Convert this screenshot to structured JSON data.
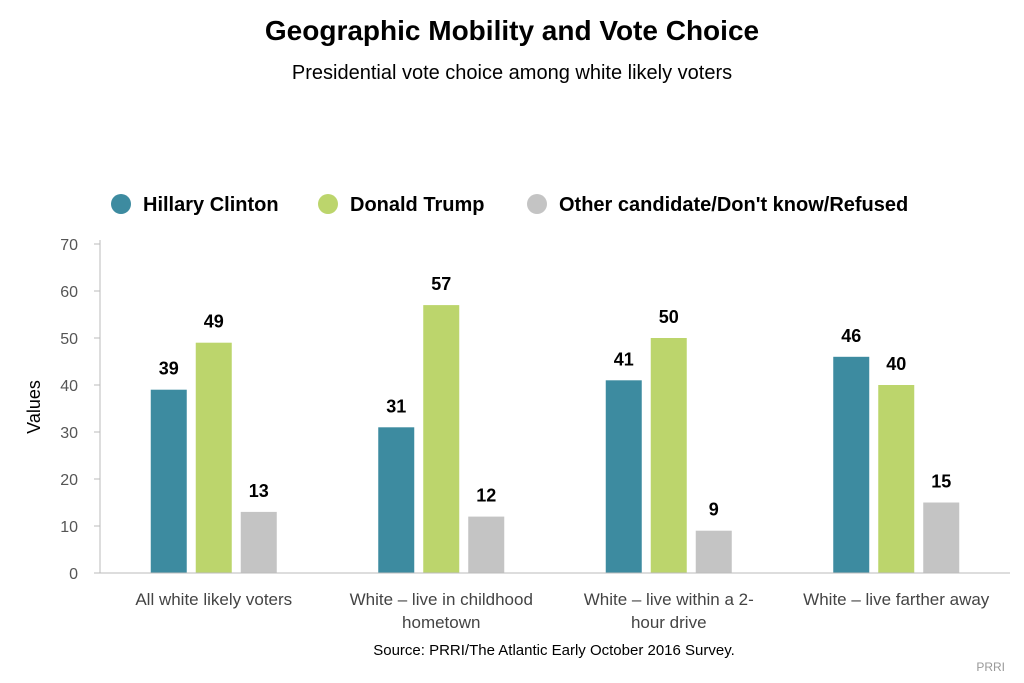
{
  "chart_data": {
    "type": "bar",
    "title": "Geographic Mobility and Vote Choice",
    "subtitle": "Presidential vote choice among white likely voters",
    "xlabel": "",
    "ylabel": "Values",
    "ylim": [
      0,
      70
    ],
    "yticks": [
      0,
      10,
      20,
      30,
      40,
      50,
      60,
      70
    ],
    "grid": false,
    "legend_position": "top",
    "categories": [
      [
        "All white likely voters"
      ],
      [
        "White – live in childhood",
        "hometown"
      ],
      [
        "White – live within a 2-",
        "hour drive"
      ],
      [
        "White – live farther away"
      ]
    ],
    "series": [
      {
        "name": "Hillary Clinton",
        "color": "#3d8ba0",
        "values": [
          39,
          31,
          41,
          46
        ]
      },
      {
        "name": "Donald Trump",
        "color": "#bcd56c",
        "values": [
          49,
          57,
          50,
          40
        ]
      },
      {
        "name": "Other candidate/Don't know/Refused",
        "color": "#c4c4c4",
        "values": [
          13,
          12,
          9,
          15
        ]
      }
    ],
    "source": "Source: PRRI/The Atlantic Early October 2016 Survey.",
    "credit": "PRRI"
  }
}
